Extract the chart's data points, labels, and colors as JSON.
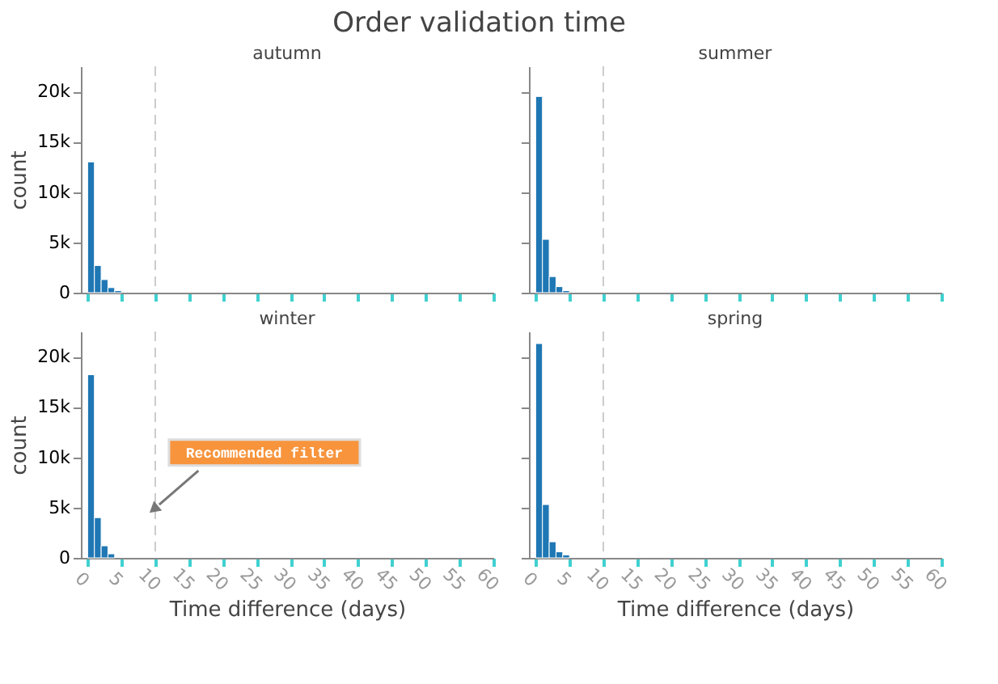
{
  "chart_data": [
    {
      "type": "histogram",
      "title": "Order validation time",
      "subtitle": "autumn",
      "ylabel": "count",
      "bins": [
        0,
        1,
        2,
        3,
        4,
        5
      ],
      "values": [
        13000,
        2700,
        1300,
        500,
        200
      ],
      "color": "#1f77b4",
      "xlim": [
        -1,
        60
      ],
      "xticks": [
        0,
        5,
        10,
        15,
        20,
        25,
        30,
        35,
        40,
        45,
        50,
        55,
        60
      ],
      "ylim": [
        0,
        22500
      ],
      "yticks": [
        0,
        {
          "value": 5000,
          "label": "5k"
        },
        {
          "value": 10000,
          "label": "10k"
        },
        {
          "value": 15000,
          "label": "15k"
        },
        {
          "value": 20000,
          "label": "20k"
        }
      ],
      "tick_labels": "y",
      "grid": false,
      "legend": false,
      "ref_lines": [
        {
          "axis": "x",
          "value": 10,
          "color": "#cccccc",
          "line_style": "dashed"
        }
      ]
    },
    {
      "type": "histogram",
      "subtitle": "summer",
      "bins": [
        0,
        1,
        2,
        3,
        4,
        5
      ],
      "values": [
        19500,
        5300,
        1600,
        600,
        200
      ],
      "color": "#1f77b4",
      "xlim": [
        -1,
        60
      ],
      "xticks": [
        0,
        5,
        10,
        15,
        20,
        25,
        30,
        35,
        40,
        45,
        50,
        55,
        60
      ],
      "ylim": [
        0,
        22500
      ],
      "yticks": [
        0,
        5000,
        10000,
        15000,
        20000
      ],
      "tick_labels": false,
      "grid": false,
      "legend": false,
      "ref_lines": [
        {
          "axis": "x",
          "value": 10,
          "color": "#cccccc",
          "line_style": "dashed"
        }
      ]
    },
    {
      "type": "histogram",
      "subtitle": "winter",
      "xlabel": "Time difference (days)",
      "ylabel": "count",
      "bins": [
        0,
        1,
        2,
        3,
        4
      ],
      "values": [
        18200,
        4000,
        1200,
        400
      ],
      "color": "#1f77b4",
      "xlim": [
        -1,
        60
      ],
      "xticks": [
        0,
        5,
        10,
        15,
        20,
        25,
        30,
        35,
        40,
        45,
        50,
        55,
        60
      ],
      "ylim": [
        0,
        22500
      ],
      "yticks": [
        0,
        {
          "value": 5000,
          "label": "5k"
        },
        {
          "value": 10000,
          "label": "10k"
        },
        {
          "value": 15000,
          "label": "15k"
        },
        {
          "value": 20000,
          "label": "20k"
        }
      ],
      "grid": false,
      "legend": false,
      "ref_lines": [
        {
          "axis": "x",
          "value": 10,
          "color": "#cccccc",
          "line_style": "dashed"
        }
      ],
      "annotations": [
        "Recommended filter"
      ]
    },
    {
      "type": "histogram",
      "subtitle": "spring",
      "xlabel": "Time difference (days)",
      "bins": [
        0,
        1,
        2,
        3,
        4,
        5
      ],
      "values": [
        21300,
        5300,
        1600,
        600,
        300
      ],
      "color": "#1f77b4",
      "xlim": [
        -1,
        60
      ],
      "xticks": [
        0,
        5,
        10,
        15,
        20,
        25,
        30,
        35,
        40,
        45,
        50,
        55,
        60
      ],
      "ylim": [
        0,
        22500
      ],
      "yticks": [
        0,
        5000,
        10000,
        15000,
        20000
      ],
      "tick_labels": "x",
      "grid": false,
      "legend": false,
      "ref_lines": [
        {
          "axis": "x",
          "value": 10,
          "color": "#cccccc",
          "line_style": "dashed"
        }
      ]
    }
  ]
}
